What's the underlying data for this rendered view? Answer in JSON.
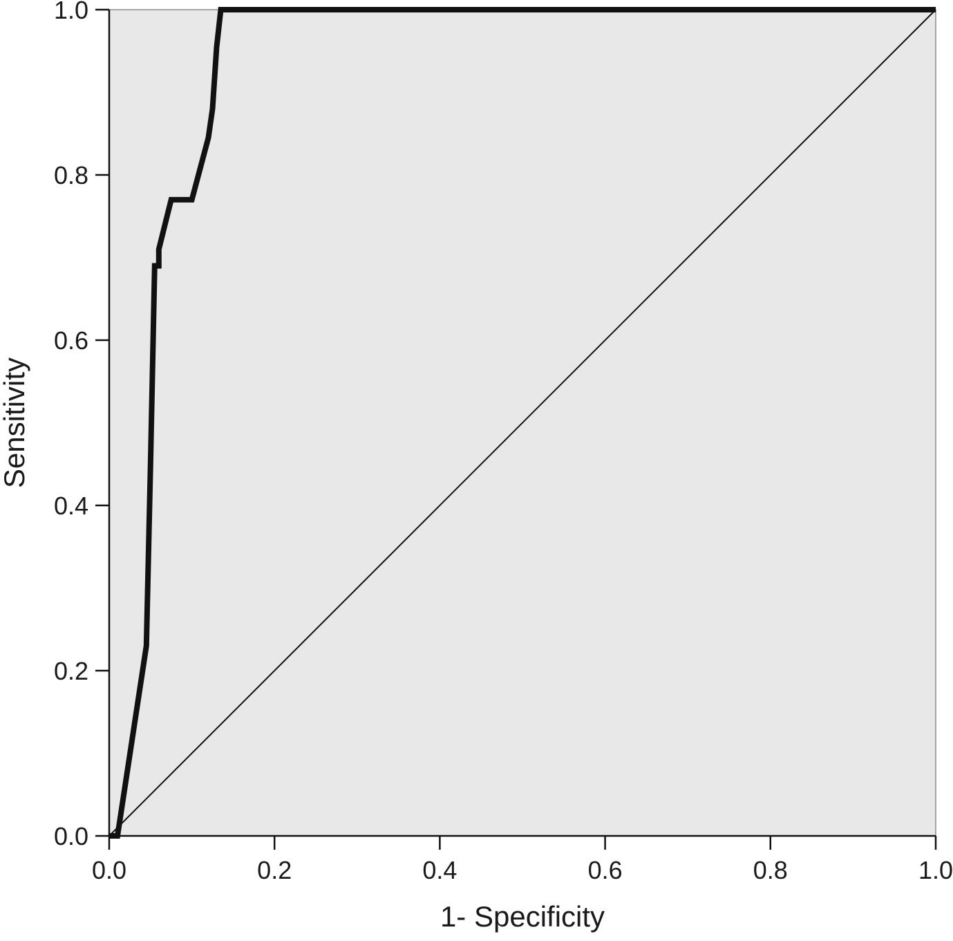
{
  "chart_data": {
    "type": "line",
    "title": "",
    "xlabel": "1- Specificity",
    "ylabel": "Sensitivity",
    "xlim": [
      0,
      1
    ],
    "ylim": [
      0,
      1
    ],
    "x_ticks": [
      "0.0",
      "0.2",
      "0.4",
      "0.6",
      "0.8",
      "1.0"
    ],
    "y_ticks": [
      "0.0",
      "0.2",
      "0.4",
      "0.6",
      "0.8",
      "1.0"
    ],
    "grid": false,
    "legend": "none",
    "background_color": "#e8e8e8",
    "series": [
      {
        "color": "#111111",
        "style": "thick",
        "x": [
          0.0,
          0.01,
          0.045,
          0.05,
          0.055,
          0.06,
          0.06,
          0.07,
          0.075,
          0.1,
          0.12,
          0.125,
          0.13,
          0.135,
          1.0
        ],
        "y": [
          0.0,
          0.0,
          0.23,
          0.45,
          0.69,
          0.69,
          0.71,
          0.75,
          0.77,
          0.77,
          0.845,
          0.88,
          0.955,
          1.0,
          1.0
        ]
      },
      {
        "color": "#111111",
        "style": "thin",
        "x": [
          0.0,
          1.0
        ],
        "y": [
          0.0,
          1.0
        ]
      }
    ]
  }
}
